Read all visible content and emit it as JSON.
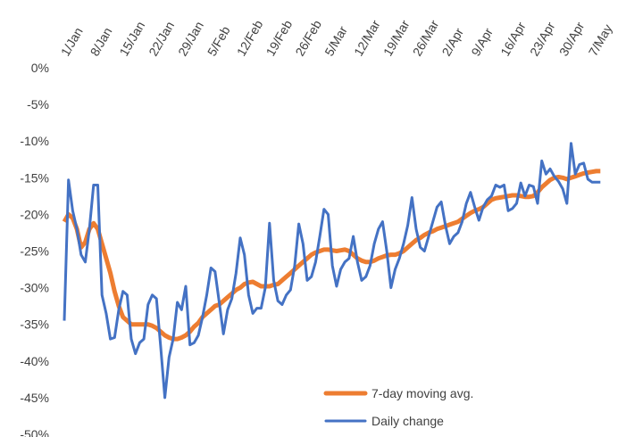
{
  "chart_data": {
    "type": "line",
    "categories": [
      "1/Jan",
      null,
      null,
      null,
      null,
      null,
      null,
      "8/Jan",
      null,
      null,
      null,
      null,
      null,
      null,
      "15/Jan",
      null,
      null,
      null,
      null,
      null,
      null,
      "22/Jan",
      null,
      null,
      null,
      null,
      null,
      null,
      "29/Jan",
      null,
      null,
      null,
      null,
      null,
      null,
      "5/Feb",
      null,
      null,
      null,
      null,
      null,
      null,
      "12/Feb",
      null,
      null,
      null,
      null,
      null,
      null,
      "19/Feb",
      null,
      null,
      null,
      null,
      null,
      null,
      "26/Feb",
      null,
      null,
      null,
      null,
      null,
      null,
      "5/Mar",
      null,
      null,
      null,
      null,
      null,
      null,
      "12/Mar",
      null,
      null,
      null,
      null,
      null,
      null,
      "19/Mar",
      null,
      null,
      null,
      null,
      null,
      null,
      "26/Mar",
      null,
      null,
      null,
      null,
      null,
      null,
      "2/Apr",
      null,
      null,
      null,
      null,
      null,
      null,
      "9/Apr",
      null,
      null,
      null,
      null,
      null,
      null,
      "16/Apr",
      null,
      null,
      null,
      null,
      null,
      null,
      "23/Apr",
      null,
      null,
      null,
      null,
      null,
      null,
      "30/Apr",
      null,
      null,
      null,
      null,
      null,
      null,
      "7/May",
      null,
      null
    ],
    "series": [
      {
        "name": "7-day moving avg.",
        "color": "#ed7d31",
        "width": 5,
        "values": [
          -21,
          -20,
          -20.5,
          -22,
          -24.5,
          -23.8,
          -22,
          -21.2,
          -22,
          -24,
          -26,
          -28,
          -30.5,
          -32.5,
          -34,
          -34.5,
          -35,
          -35,
          -35,
          -35,
          -35,
          -35.2,
          -35.5,
          -36,
          -36.5,
          -36.8,
          -37,
          -37,
          -36.8,
          -36.5,
          -36,
          -35.3,
          -34.8,
          -34,
          -33.5,
          -33,
          -32.5,
          -32.3,
          -31.8,
          -31.3,
          -30.8,
          -30.3,
          -30,
          -29.5,
          -29.3,
          -29.2,
          -29.5,
          -29.8,
          -29.8,
          -29.8,
          -29.6,
          -29.5,
          -29,
          -28.5,
          -28,
          -27.5,
          -27,
          -26.5,
          -26,
          -25.5,
          -25.2,
          -25,
          -24.8,
          -24.8,
          -24.9,
          -25,
          -24.9,
          -24.8,
          -25,
          -25.5,
          -26,
          -26.3,
          -26.5,
          -26.5,
          -26.3,
          -26,
          -25.8,
          -25.6,
          -25.5,
          -25.5,
          -25.3,
          -25,
          -24.5,
          -24,
          -23.5,
          -23.2,
          -22.8,
          -22.5,
          -22.3,
          -22,
          -21.8,
          -21.6,
          -21.4,
          -21.2,
          -21,
          -20.6,
          -20.2,
          -19.8,
          -19.5,
          -19.3,
          -19,
          -18.5,
          -18,
          -17.8,
          -17.7,
          -17.6,
          -17.5,
          -17.4,
          -17.4,
          -17.5,
          -17.6,
          -17.6,
          -17.5,
          -17,
          -16.3,
          -15.8,
          -15.3,
          -15,
          -14.9,
          -15,
          -15.2,
          -15,
          -14.8,
          -14.6,
          -14.4,
          -14.3,
          -14.2,
          -14.1,
          -14.1
        ]
      },
      {
        "name": "Daily change",
        "color": "#4472c4",
        "width": 3,
        "values": [
          -34.5,
          -15.3,
          -19.5,
          -22,
          -25.5,
          -26.5,
          -22,
          -16,
          -16,
          -31,
          -33.5,
          -37,
          -36.8,
          -33,
          -30.5,
          -31,
          -37,
          -39,
          -37.5,
          -37,
          -32.3,
          -31,
          -31.5,
          -38,
          -45,
          -39.5,
          -37,
          -32,
          -33,
          -29.8,
          -37.8,
          -37.5,
          -36.5,
          -34,
          -31,
          -27.3,
          -27.8,
          -32,
          -36.3,
          -33,
          -31.5,
          -28,
          -23.2,
          -25.5,
          -31,
          -33.5,
          -32.8,
          -32.8,
          -30,
          -21.2,
          -29,
          -31.8,
          -32.3,
          -31,
          -30.3,
          -27,
          -21.3,
          -24,
          -29,
          -28.5,
          -26.5,
          -23,
          -19.3,
          -20,
          -27,
          -29.8,
          -27.5,
          -26.5,
          -26,
          -23,
          -26.5,
          -29,
          -28.5,
          -27,
          -24,
          -22,
          -21,
          -25,
          -30,
          -27.5,
          -26,
          -24,
          -21.5,
          -17.7,
          -22,
          -24.5,
          -25,
          -23,
          -21,
          -19,
          -18.3,
          -21.5,
          -24,
          -23,
          -22.5,
          -21,
          -18.5,
          -17,
          -19,
          -20.8,
          -19,
          -18,
          -17.5,
          -16,
          -16.3,
          -16,
          -19.5,
          -19.2,
          -18.5,
          -15.7,
          -17.5,
          -16,
          -16.2,
          -18.5,
          -12.7,
          -14.5,
          -13.8,
          -14.8,
          -15.5,
          -16.5,
          -18.5,
          -10.3,
          -14.5,
          -13.2,
          -13,
          -15.2,
          -15.6,
          -15.6,
          -15.6
        ]
      }
    ],
    "ylim": [
      -50,
      0
    ],
    "yticks": [
      {
        "value": 0,
        "label": "0%"
      },
      {
        "value": -5,
        "label": "-5%"
      },
      {
        "value": -10,
        "label": "-10%"
      },
      {
        "value": -15,
        "label": "-15%"
      },
      {
        "value": -20,
        "label": "-20%"
      },
      {
        "value": -25,
        "label": "-25%"
      },
      {
        "value": -30,
        "label": "-30%"
      },
      {
        "value": -35,
        "label": "-35%"
      },
      {
        "value": -40,
        "label": "-40%"
      },
      {
        "value": -45,
        "label": "-45%"
      },
      {
        "value": -50,
        "label": "-50%"
      }
    ],
    "grid": false,
    "legend": "lower right"
  }
}
